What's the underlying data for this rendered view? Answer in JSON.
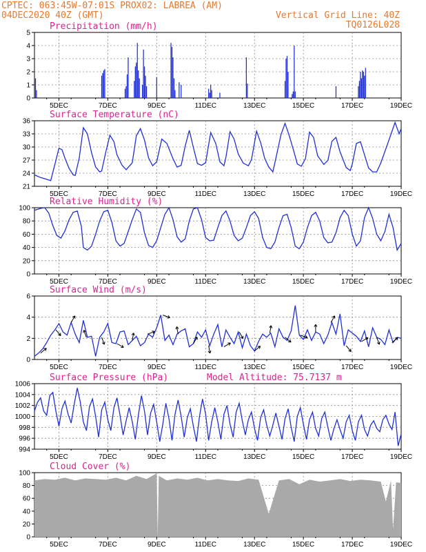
{
  "header": {
    "line1_left": "CPTEC:   063:45W-07:01S   PROX02: LABREA (AM)",
    "line2_left": "04DEC2020 40Z (GMT)",
    "line2_right": "Vertical Grid Line: 40Z",
    "line3_right": "TQ0126L028"
  },
  "colors": {
    "line": "#1f2fd6",
    "bar": "#1f2fd6",
    "cloud": "#a9a9a9",
    "title": "#e0208f",
    "header": "#e8782a"
  },
  "x_axis": {
    "hour_start": 0,
    "hour_end": 360,
    "tick_labels": [
      "5DEC",
      "7DEC",
      "9DEC",
      "11DEC",
      "13DEC",
      "15DEC",
      "17DEC",
      "19DEC"
    ],
    "tick_hours": [
      24,
      72,
      120,
      168,
      216,
      264,
      312,
      360
    ]
  },
  "chart_data": [
    {
      "type": "bar",
      "title": "Precipitation (mm/h)",
      "ylim": [
        0,
        5
      ],
      "yticks": [
        0,
        1,
        2,
        3,
        4,
        5
      ],
      "bars": [
        [
          1,
          1.5
        ],
        [
          2,
          0.6
        ],
        [
          66,
          1.7
        ],
        [
          67,
          1.9
        ],
        [
          68,
          2.1
        ],
        [
          69,
          2.2
        ],
        [
          89,
          0.7
        ],
        [
          90,
          0.9
        ],
        [
          91,
          1.8
        ],
        [
          92,
          3.1
        ],
        [
          98,
          1.3
        ],
        [
          99,
          2.4
        ],
        [
          100,
          2.7
        ],
        [
          101,
          4.2
        ],
        [
          102,
          2.1
        ],
        [
          103,
          1.5
        ],
        [
          106,
          1.0
        ],
        [
          107,
          3.7
        ],
        [
          108,
          2.4
        ],
        [
          109,
          1.7
        ],
        [
          110,
          0.9
        ],
        [
          120,
          1.6
        ],
        [
          134,
          4.2
        ],
        [
          135,
          3.9
        ],
        [
          136,
          3.1
        ],
        [
          137,
          1.5
        ],
        [
          138,
          0.6
        ],
        [
          142,
          1.2
        ],
        [
          144,
          1.0
        ],
        [
          171,
          0.7
        ],
        [
          172,
          0.4
        ],
        [
          173,
          1.0
        ],
        [
          174,
          0.6
        ],
        [
          182,
          0.4
        ],
        [
          208,
          3.1
        ],
        [
          209,
          1.1
        ],
        [
          246,
          1.3
        ],
        [
          247,
          3.0
        ],
        [
          248,
          3.2
        ],
        [
          249,
          2.0
        ],
        [
          253,
          0.3
        ],
        [
          254,
          0.5
        ],
        [
          255,
          4.0
        ],
        [
          256,
          0.5
        ],
        [
          296,
          0.9
        ],
        [
          318,
          0.9
        ],
        [
          319,
          1.3
        ],
        [
          320,
          2.0
        ],
        [
          321,
          1.5
        ],
        [
          322,
          2.1
        ],
        [
          323,
          2.0
        ],
        [
          324,
          1.7
        ],
        [
          325,
          2.3
        ]
      ]
    },
    {
      "type": "line",
      "title": "Surface Temperature (nC)",
      "ylim": [
        21,
        36
      ],
      "yticks": [
        21,
        24,
        27,
        30,
        33,
        36
      ],
      "x": [
        0,
        6,
        12,
        16,
        20,
        24,
        27,
        30,
        34,
        38,
        40,
        44,
        48,
        52,
        56,
        60,
        64,
        66,
        70,
        74,
        78,
        81,
        86,
        90,
        96,
        100,
        104,
        108,
        112,
        116,
        120,
        125,
        130,
        136,
        140,
        144,
        148,
        152,
        156,
        160,
        164,
        168,
        173,
        178,
        182,
        186,
        188,
        192,
        196,
        200,
        205,
        210,
        213,
        218,
        222,
        226,
        230,
        234,
        237,
        242,
        246,
        250,
        255,
        258,
        262,
        266,
        270,
        274,
        278,
        284,
        288,
        292,
        296,
        300,
        306,
        310,
        312,
        316,
        320,
        324,
        328,
        332,
        336,
        340,
        348,
        354,
        358,
        360
      ],
      "values": [
        23.6,
        23.0,
        22.6,
        22.3,
        26.0,
        29.7,
        29.4,
        27.4,
        25.1,
        23.6,
        23.5,
        27.5,
        34.4,
        33.0,
        28.7,
        25.4,
        24.3,
        24.5,
        28.8,
        32.7,
        31.2,
        28.2,
        25.8,
        24.8,
        26.4,
        32.6,
        34.2,
        31.6,
        27.5,
        25.7,
        26.6,
        31.8,
        30.8,
        27.3,
        25.4,
        25.8,
        30.2,
        33.8,
        29.9,
        26.2,
        25.8,
        26.4,
        33.3,
        30.8,
        26.6,
        25.7,
        27.7,
        33.5,
        31.8,
        28.4,
        26.3,
        25.7,
        27.1,
        33.6,
        31.0,
        27.4,
        25.4,
        24.3,
        27.4,
        32.8,
        35.4,
        32.7,
        28.7,
        26.1,
        25.6,
        27.3,
        33.4,
        32.2,
        28.0,
        26.0,
        26.9,
        31.3,
        32.2,
        28.9,
        25.3,
        24.6,
        26.1,
        30.8,
        31.2,
        28.2,
        25.2,
        24.3,
        24.3,
        26.3,
        31.6,
        35.6,
        33.0,
        34.2
      ]
    },
    {
      "type": "line",
      "title": "Relative Humidity (%)",
      "ylim": [
        0,
        100
      ],
      "yticks": [
        0,
        20,
        40,
        60,
        80,
        100
      ],
      "x": [
        0,
        6,
        10,
        14,
        18,
        22,
        26,
        30,
        34,
        38,
        42,
        46,
        48,
        52,
        56,
        60,
        64,
        68,
        72,
        76,
        80,
        84,
        88,
        92,
        96,
        100,
        104,
        108,
        112,
        116,
        120,
        124,
        128,
        132,
        136,
        140,
        144,
        148,
        152,
        156,
        160,
        164,
        168,
        172,
        176,
        180,
        184,
        188,
        192,
        196,
        200,
        204,
        208,
        212,
        216,
        220,
        224,
        228,
        232,
        236,
        240,
        244,
        248,
        252,
        256,
        260,
        264,
        268,
        272,
        276,
        280,
        284,
        288,
        292,
        296,
        300,
        304,
        308,
        312,
        316,
        320,
        324,
        328,
        332,
        336,
        340,
        344,
        348,
        352,
        356,
        360
      ],
      "values": [
        96,
        99,
        100,
        92,
        73,
        58,
        54,
        65,
        82,
        93,
        95,
        72,
        40,
        36,
        42,
        60,
        80,
        94,
        96,
        78,
        50,
        42,
        46,
        64,
        82,
        98,
        93,
        62,
        43,
        40,
        50,
        70,
        90,
        100,
        82,
        56,
        48,
        53,
        80,
        98,
        100,
        82,
        55,
        50,
        51,
        70,
        88,
        95,
        80,
        58,
        50,
        54,
        70,
        88,
        94,
        84,
        55,
        40,
        38,
        48,
        70,
        88,
        90,
        70,
        42,
        38,
        48,
        70,
        88,
        93,
        80,
        55,
        47,
        48,
        62,
        85,
        96,
        88,
        60,
        42,
        50,
        85,
        100,
        84,
        60,
        50,
        64,
        90,
        70,
        36,
        46
      ]
    },
    {
      "type": "line",
      "title": "Surface Wind (m/s)",
      "ylim": [
        0,
        6
      ],
      "yticks": [
        0,
        2,
        4,
        6
      ],
      "x": [
        0,
        4,
        8,
        12,
        16,
        20,
        24,
        28,
        32,
        36,
        40,
        44,
        48,
        52,
        56,
        60,
        64,
        68,
        72,
        76,
        80,
        84,
        88,
        92,
        96,
        100,
        104,
        108,
        112,
        116,
        120,
        124,
        128,
        132,
        136,
        140,
        144,
        148,
        152,
        156,
        160,
        164,
        168,
        172,
        176,
        180,
        184,
        188,
        192,
        196,
        200,
        204,
        208,
        212,
        216,
        220,
        224,
        228,
        232,
        236,
        240,
        244,
        248,
        252,
        256,
        260,
        264,
        268,
        272,
        276,
        280,
        284,
        288,
        292,
        296,
        300,
        304,
        308,
        312,
        316,
        320,
        324,
        328,
        332,
        336,
        340,
        344,
        348,
        352,
        356,
        360
      ],
      "values": [
        0.3,
        0.6,
        1.0,
        1.6,
        2.3,
        2.8,
        3.4,
        2.6,
        2.3,
        3.5,
        2.4,
        1.6,
        3.7,
        2.1,
        2.2,
        0.3,
        2.1,
        2.6,
        3.4,
        1.6,
        1.5,
        2.6,
        2.7,
        1.4,
        1.8,
        2.2,
        1.3,
        1.6,
        2.4,
        2.1,
        3.0,
        4.2,
        1.8,
        2.3,
        1.4,
        2.4,
        2.7,
        2.9,
        1.2,
        1.5,
        2.6,
        2.1,
        2.8,
        1.3,
        2.4,
        3.3,
        1.2,
        2.8,
        2.1,
        1.5,
        2.6,
        1.1,
        2.4,
        1.3,
        0.8,
        1.7,
        2.4,
        2.1,
        2.5,
        1.2,
        2.9,
        2.1,
        1.8,
        2.7,
        5.1,
        2.3,
        1.9,
        2.8,
        1.8,
        2.6,
        2.4,
        1.5,
        2.3,
        3.5,
        2.4,
        4.3,
        1.3,
        2.8,
        2.5,
        2.2,
        1.7,
        2.7,
        1.2,
        3.0,
        2.1,
        1.9,
        1.4,
        2.8,
        1.6,
        2.1,
        2.0
      ],
      "arrows_label": "wind direction vectors"
    },
    {
      "type": "line",
      "title": "Surface Pressure (hPa)",
      "annotation": "Model Altitude: 75.7137 m",
      "ylim": [
        994,
        1006
      ],
      "yticks": [
        994,
        996,
        998,
        1000,
        1002,
        1004,
        1006
      ],
      "x": [
        0,
        3,
        6,
        9,
        12,
        15,
        18,
        21,
        24,
        27,
        30,
        33,
        36,
        39,
        42,
        45,
        48,
        51,
        54,
        57,
        60,
        63,
        66,
        69,
        72,
        75,
        78,
        81,
        84,
        87,
        90,
        93,
        96,
        99,
        102,
        105,
        108,
        111,
        114,
        117,
        120,
        123,
        126,
        129,
        132,
        135,
        138,
        141,
        144,
        147,
        150,
        153,
        156,
        159,
        162,
        165,
        168,
        171,
        174,
        177,
        180,
        183,
        186,
        189,
        192,
        195,
        198,
        201,
        204,
        207,
        210,
        213,
        216,
        219,
        222,
        225,
        228,
        231,
        234,
        237,
        240,
        243,
        246,
        249,
        252,
        255,
        258,
        261,
        264,
        267,
        270,
        273,
        276,
        279,
        282,
        285,
        288,
        291,
        294,
        297,
        300,
        303,
        306,
        309,
        312,
        315,
        318,
        321,
        324,
        327,
        330,
        333,
        336,
        339,
        342,
        345,
        348,
        351,
        354,
        357,
        360
      ],
      "values": [
        1001.0,
        1002.6,
        1003.4,
        1001.0,
        1000.2,
        1003.8,
        1004.4,
        1001.0,
        998.2,
        1001.4,
        1002.8,
        1000.4,
        998.8,
        1002.2,
        1005.2,
        1002.6,
        999.0,
        997.4,
        1001.8,
        1003.2,
        1000.0,
        996.2,
        1001.2,
        1002.6,
        999.4,
        997.4,
        1001.6,
        1003.4,
        1000.2,
        996.6,
        999.2,
        1001.6,
        999.0,
        995.8,
        1000.2,
        1003.8,
        1001.0,
        996.6,
        1000.6,
        1002.2,
        999.0,
        995.4,
        998.6,
        1002.4,
        999.6,
        995.6,
        1000.4,
        1003.0,
        1000.0,
        996.2,
        999.8,
        1001.4,
        998.2,
        995.4,
        1000.0,
        1003.2,
        1000.4,
        995.6,
        999.0,
        1001.6,
        999.0,
        995.8,
        1000.4,
        1002.0,
        998.6,
        996.2,
        1000.8,
        1002.4,
        999.2,
        996.6,
        999.4,
        1000.8,
        997.8,
        995.6,
        999.8,
        1001.2,
        998.4,
        996.4,
        998.4,
        1000.6,
        998.2,
        995.8,
        999.6,
        1001.4,
        998.0,
        995.4,
        1000.0,
        1001.6,
        998.6,
        995.8,
        999.4,
        1000.8,
        997.8,
        996.4,
        999.6,
        1000.8,
        998.0,
        995.6,
        997.8,
        999.4,
        997.6,
        996.0,
        999.0,
        1000.2,
        997.4,
        995.6,
        999.0,
        1000.2,
        997.6,
        996.4,
        998.4,
        999.2,
        997.8,
        997.2,
        999.4,
        1000.2,
        998.6,
        997.6,
        1000.8,
        994.6,
        996.8
      ]
    },
    {
      "type": "area",
      "title": "Cloud Cover (%)",
      "ylim": [
        0,
        100
      ],
      "yticks": [
        0,
        20,
        40,
        60,
        80,
        100
      ],
      "x": [
        0,
        10,
        20,
        30,
        40,
        50,
        60,
        70,
        80,
        90,
        100,
        110,
        120,
        121,
        122,
        130,
        140,
        150,
        160,
        170,
        180,
        190,
        200,
        210,
        220,
        230,
        240,
        250,
        260,
        270,
        280,
        290,
        300,
        310,
        320,
        330,
        340,
        345,
        350,
        352,
        355,
        360
      ],
      "values": [
        88,
        90,
        89,
        92,
        88,
        91,
        90,
        89,
        92,
        88,
        95,
        90,
        99,
        0,
        95,
        88,
        91,
        89,
        92,
        88,
        90,
        88,
        87,
        91,
        89,
        36,
        88,
        90,
        82,
        89,
        86,
        88,
        90,
        87,
        89,
        88,
        86,
        55,
        88,
        12,
        85,
        84
      ]
    }
  ]
}
